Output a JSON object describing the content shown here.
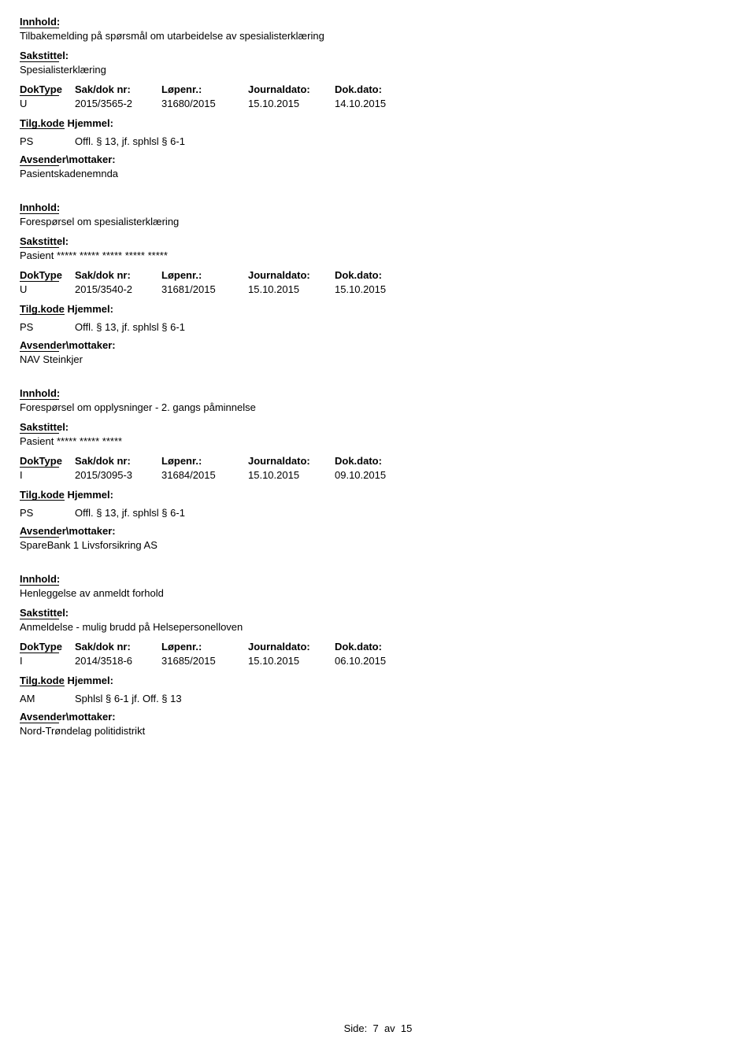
{
  "labels": {
    "innhold": "Innhold:",
    "sakstittel": "Sakstittel:",
    "doktype": "DokType",
    "sakdok": "Sak/dok nr:",
    "lopenr": "Løpenr.:",
    "journaldato": "Journaldato:",
    "dokdato": "Dok.dato:",
    "tilgkode": "Tilg.kode",
    "hjemmel": "Hjemmel:",
    "avsender": "Avsender\\mottaker:"
  },
  "entries": [
    {
      "innhold": "Tilbakemelding på spørsmål om utarbeidelse av spesialisterklæring",
      "sakstittel": "Spesialisterklæring",
      "doktype": "U",
      "sakdok": "2015/3565-2",
      "lopenr": "31680/2015",
      "journaldato": "15.10.2015",
      "dokdato": "14.10.2015",
      "tilgkode": "PS",
      "hjemmel": "Offl. § 13, jf. sphlsl § 6-1",
      "avsender": "Pasientskadenemnda"
    },
    {
      "innhold": "Forespørsel om spesialisterklæring",
      "sakstittel": "Pasient ***** ***** ***** ***** *****",
      "doktype": "U",
      "sakdok": "2015/3540-2",
      "lopenr": "31681/2015",
      "journaldato": "15.10.2015",
      "dokdato": "15.10.2015",
      "tilgkode": "PS",
      "hjemmel": "Offl. § 13, jf. sphlsl § 6-1",
      "avsender": "NAV Steinkjer"
    },
    {
      "innhold": "Forespørsel om opplysninger  - 2. gangs påminnelse",
      "sakstittel": "Pasient ***** ***** *****",
      "doktype": "I",
      "sakdok": "2015/3095-3",
      "lopenr": "31684/2015",
      "journaldato": "15.10.2015",
      "dokdato": "09.10.2015",
      "tilgkode": "PS",
      "hjemmel": "Offl. § 13, jf. sphlsl § 6-1",
      "avsender": "SpareBank 1 Livsforsikring AS"
    },
    {
      "innhold": "Henleggelse av anmeldt forhold",
      "sakstittel": "Anmeldelse - mulig brudd på Helsepersonelloven",
      "doktype": "I",
      "sakdok": "2014/3518-6",
      "lopenr": "31685/2015",
      "journaldato": "15.10.2015",
      "dokdato": "06.10.2015",
      "tilgkode": "AM",
      "hjemmel": "Sphlsl § 6-1 jf. Off. § 13",
      "avsender": "Nord-Trøndelag politidistrikt"
    }
  ],
  "footer": {
    "side": "Side:",
    "page": "7",
    "av": "av",
    "total": "15"
  }
}
